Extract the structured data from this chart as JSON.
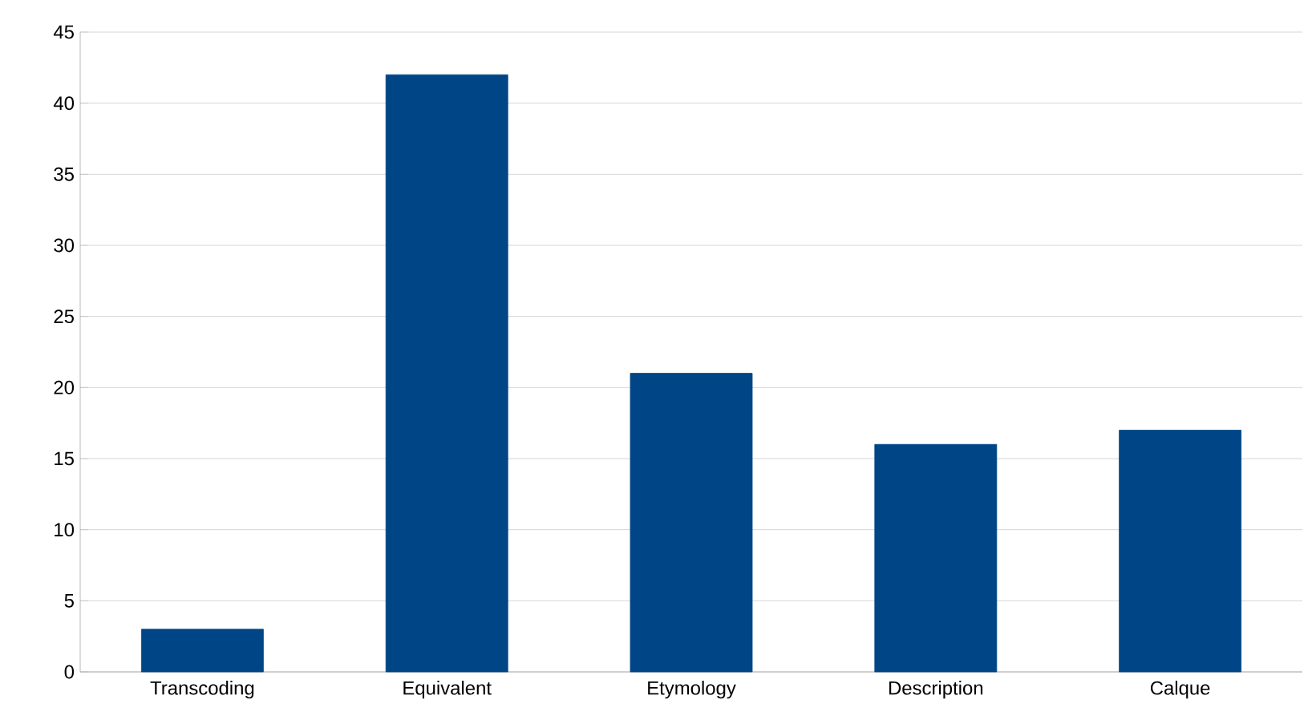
{
  "chart_data": {
    "type": "bar",
    "categories": [
      "Transcoding",
      "Equivalent",
      "Etymology",
      "Description",
      "Calque"
    ],
    "values": [
      3,
      42,
      21,
      16,
      17
    ],
    "color": "#004586",
    "ylim": [
      0,
      45
    ],
    "yticks": [
      0,
      5,
      10,
      15,
      20,
      25,
      30,
      35,
      40,
      45
    ],
    "grid": "y"
  }
}
